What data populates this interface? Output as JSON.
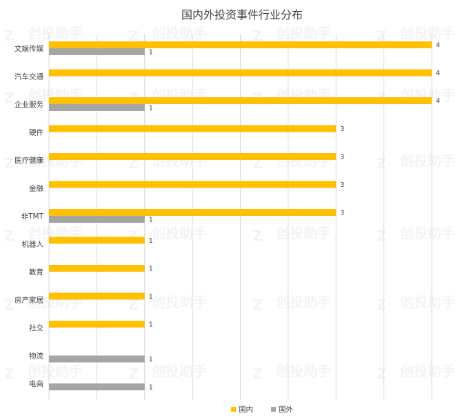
{
  "watermark": "创投助手",
  "chart_data": {
    "type": "bar",
    "orientation": "horizontal",
    "title": "国内外投资事件行业分布",
    "categories": [
      "文娱传媒",
      "汽车交通",
      "企业服务",
      "硬件",
      "医疗健康",
      "金融",
      "非TMT",
      "机器人",
      "教育",
      "房产家居",
      "社交",
      "物流",
      "电商"
    ],
    "series": [
      {
        "name": "国内",
        "color": "#FFC000",
        "values": [
          4,
          4,
          4,
          3,
          3,
          3,
          3,
          1,
          1,
          1,
          1,
          null,
          null
        ]
      },
      {
        "name": "国外",
        "color": "#A5A5A5",
        "values": [
          1,
          null,
          1,
          null,
          null,
          null,
          1,
          null,
          null,
          null,
          null,
          1,
          1
        ]
      }
    ],
    "xlim": [
      0,
      4
    ],
    "gridlines": "vertical",
    "data_labels": true,
    "legend_position": "bottom"
  }
}
